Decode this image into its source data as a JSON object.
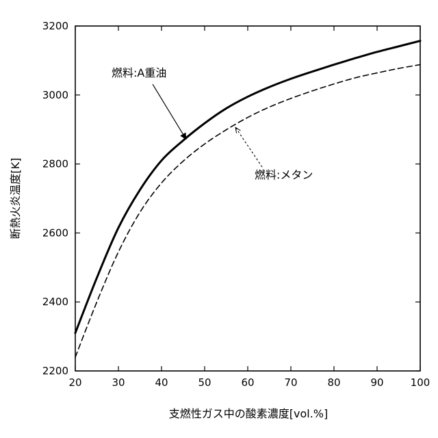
{
  "chart_data": {
    "type": "line",
    "title": "",
    "xlabel": "支燃性ガス中の酸素濃度[vol.%]",
    "ylabel": "断熱火炎温度[K]",
    "xlim": [
      20,
      100
    ],
    "ylim": [
      2200,
      3200
    ],
    "x_ticks": [
      20,
      30,
      40,
      50,
      60,
      70,
      80,
      90,
      100
    ],
    "y_ticks": [
      2200,
      2400,
      2600,
      2800,
      3000,
      3200
    ],
    "grid": false,
    "legend": "none",
    "series": [
      {
        "name": "燃料:A重油",
        "style": "solid",
        "color": "#000000",
        "x": [
          20,
          25,
          30,
          35,
          40,
          45,
          50,
          55,
          60,
          65,
          70,
          75,
          80,
          85,
          90,
          95,
          100
        ],
        "y": [
          2310,
          2470,
          2615,
          2725,
          2810,
          2868,
          2918,
          2961,
          2995,
          3023,
          3047,
          3068,
          3088,
          3107,
          3125,
          3141,
          3157
        ]
      },
      {
        "name": "燃料:メタン",
        "style": "dashed",
        "color": "#000000",
        "x": [
          20,
          25,
          30,
          35,
          40,
          45,
          50,
          55,
          60,
          65,
          70,
          75,
          80,
          85,
          90,
          95,
          100
        ],
        "y": [
          2240,
          2400,
          2545,
          2660,
          2745,
          2808,
          2858,
          2899,
          2935,
          2965,
          2990,
          3012,
          3032,
          3050,
          3064,
          3077,
          3088
        ]
      }
    ],
    "annotations": [
      {
        "text": "燃料:A重油",
        "series_index": 0,
        "arrow_to": [
          46,
          2878
        ]
      },
      {
        "text": "燃料:メタン",
        "series_index": 1,
        "arrow_to": [
          57,
          2910
        ]
      }
    ]
  }
}
